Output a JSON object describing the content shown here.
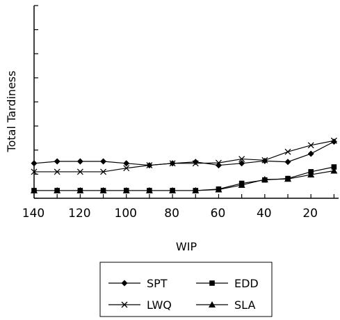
{
  "chart_data": {
    "type": "line",
    "xlabel": "WIP",
    "ylabel": "Total Tardiness",
    "x": [
      140,
      130,
      120,
      110,
      100,
      90,
      80,
      70,
      60,
      50,
      40,
      30,
      20,
      10
    ],
    "x_ticks": [
      "140",
      "120",
      "100",
      "80",
      "60",
      "40",
      "20"
    ],
    "x_tick_values": [
      140,
      120,
      100,
      80,
      60,
      40,
      20
    ],
    "xlim": [
      140,
      8
    ],
    "x_reversed": true,
    "ylim": [
      0,
      8
    ],
    "y_tick_count": 9,
    "y_tick_labels_shown": false,
    "grid": false,
    "legend_position": "bottom",
    "series": [
      {
        "name": "SPT",
        "marker": "diamond",
        "color": "#000000",
        "values": [
          1.45,
          1.53,
          1.53,
          1.53,
          1.45,
          1.37,
          1.45,
          1.51,
          1.37,
          1.45,
          1.55,
          1.51,
          1.85,
          2.35
        ]
      },
      {
        "name": "EDD",
        "marker": "square",
        "color": "#000000",
        "values": [
          0.32,
          0.32,
          0.32,
          0.32,
          0.32,
          0.32,
          0.32,
          0.32,
          0.38,
          0.62,
          0.76,
          0.82,
          1.1,
          1.3
        ]
      },
      {
        "name": "LWQ",
        "marker": "x",
        "color": "#000000",
        "values": [
          1.1,
          1.1,
          1.1,
          1.1,
          1.25,
          1.37,
          1.45,
          1.45,
          1.47,
          1.63,
          1.58,
          1.93,
          2.2,
          2.39
        ]
      },
      {
        "name": "SLA",
        "marker": "triangle",
        "color": "#000000",
        "values": [
          0.32,
          0.32,
          0.32,
          0.32,
          0.32,
          0.32,
          0.32,
          0.32,
          0.36,
          0.55,
          0.78,
          0.8,
          0.98,
          1.14
        ]
      }
    ]
  }
}
